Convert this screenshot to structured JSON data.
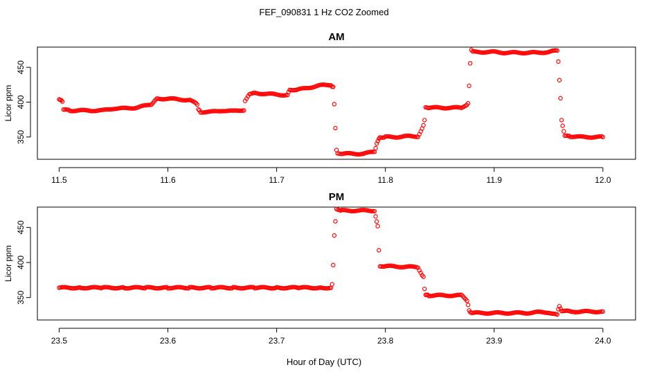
{
  "page": {
    "title": "FEF_090831  1 Hz CO2 Zoomed",
    "xlabel": "Hour of Day (UTC)"
  },
  "colors": {
    "points": "#ff0000",
    "axis": "#000000",
    "background": "#ffffff"
  },
  "chart_data": [
    {
      "type": "scatter",
      "title": "AM",
      "ylabel": "Licor ppm",
      "xlabel": "",
      "xlim": [
        11.48,
        12.03
      ],
      "ylim": [
        318,
        479
      ],
      "xticks": [
        11.5,
        11.6,
        11.7,
        11.8,
        11.9,
        12.0
      ],
      "xtick_labels": [
        "11.5",
        "11.6",
        "11.7",
        "11.8",
        "11.9",
        "12.0"
      ],
      "yticks": [
        350,
        400,
        450
      ],
      "ytick_labels": [
        "350",
        "400",
        "450"
      ],
      "grid": false,
      "legend": "none",
      "series": [
        {
          "x": [
            11.5,
            11.503,
            11.504,
            11.51,
            11.52,
            11.53,
            11.54,
            11.55,
            11.56,
            11.57,
            11.58,
            11.585,
            11.59,
            11.6,
            11.61,
            11.62,
            11.627,
            11.628,
            11.63,
            11.64,
            11.65,
            11.66,
            11.67,
            11.671,
            11.675,
            11.68,
            11.69,
            11.7,
            11.71,
            11.712,
            11.72,
            11.73,
            11.74,
            11.75,
            11.752,
            11.753,
            11.754,
            11.755,
            11.756,
            11.76,
            11.77,
            11.78,
            11.79,
            11.792,
            11.795,
            11.8,
            11.81,
            11.82,
            11.83,
            11.835,
            11.836,
            11.837,
            11.84,
            11.85,
            11.86,
            11.87,
            11.876,
            11.877,
            11.878,
            11.879,
            11.88,
            11.89,
            11.9,
            11.91,
            11.92,
            11.93,
            11.94,
            11.95,
            11.958,
            11.959,
            11.96,
            11.961,
            11.962,
            11.965,
            11.97,
            11.98,
            11.99,
            12.0
          ],
          "y": [
            404,
            401,
            389,
            388,
            388,
            388,
            388,
            391,
            391,
            392,
            395,
            397,
            405,
            405,
            404,
            403,
            397,
            389,
            386,
            386,
            388,
            387,
            389,
            401,
            412,
            413,
            412,
            411,
            410,
            418,
            418,
            421,
            424,
            425,
            421,
            398,
            362,
            332,
            326,
            326,
            326,
            326,
            329,
            340,
            350,
            350,
            350,
            351,
            351,
            366,
            375,
            392,
            392,
            392,
            392,
            392,
            398,
            424,
            455,
            476,
            472,
            472,
            472,
            471,
            471,
            471,
            471,
            472,
            474,
            458,
            432,
            405,
            375,
            351,
            351,
            350,
            350,
            350
          ]
        }
      ]
    },
    {
      "type": "scatter",
      "title": "PM",
      "ylabel": "Licor ppm",
      "xlabel": "",
      "xlim": [
        23.48,
        24.03
      ],
      "ylim": [
        318,
        479
      ],
      "xticks": [
        23.5,
        23.6,
        23.7,
        23.8,
        23.9,
        24.0
      ],
      "xtick_labels": [
        "23.5",
        "23.6",
        "23.7",
        "23.8",
        "23.9",
        "24.0"
      ],
      "yticks": [
        350,
        400,
        450
      ],
      "ytick_labels": [
        "350",
        "400",
        "450"
      ],
      "grid": false,
      "legend": "none",
      "series": [
        {
          "x": [
            23.5,
            23.52,
            23.54,
            23.56,
            23.58,
            23.6,
            23.62,
            23.64,
            23.66,
            23.68,
            23.7,
            23.72,
            23.74,
            23.75,
            23.751,
            23.752,
            23.753,
            23.754,
            23.755,
            23.76,
            23.77,
            23.78,
            23.79,
            23.793,
            23.794,
            23.795,
            23.8,
            23.81,
            23.82,
            23.83,
            23.835,
            23.836,
            23.837,
            23.84,
            23.85,
            23.86,
            23.87,
            23.875,
            23.876,
            23.877,
            23.878,
            23.88,
            23.89,
            23.9,
            23.91,
            23.92,
            23.93,
            23.94,
            23.95,
            23.958,
            23.959,
            23.96,
            23.962,
            23.97,
            23.98,
            23.99,
            24.0
          ],
          "y": [
            364,
            364,
            364,
            364,
            364,
            364,
            364,
            364,
            364,
            364,
            364,
            364,
            364,
            364,
            369,
            396,
            439,
            458,
            477,
            474,
            474,
            474,
            474,
            451,
            418,
            394,
            395,
            394,
            394,
            393,
            379,
            363,
            353,
            353,
            353,
            353,
            353,
            346,
            339,
            332,
            329,
            328,
            328,
            328,
            328,
            328,
            328,
            329,
            329,
            325,
            334,
            337,
            331,
            330,
            330,
            330,
            330
          ]
        }
      ]
    }
  ]
}
